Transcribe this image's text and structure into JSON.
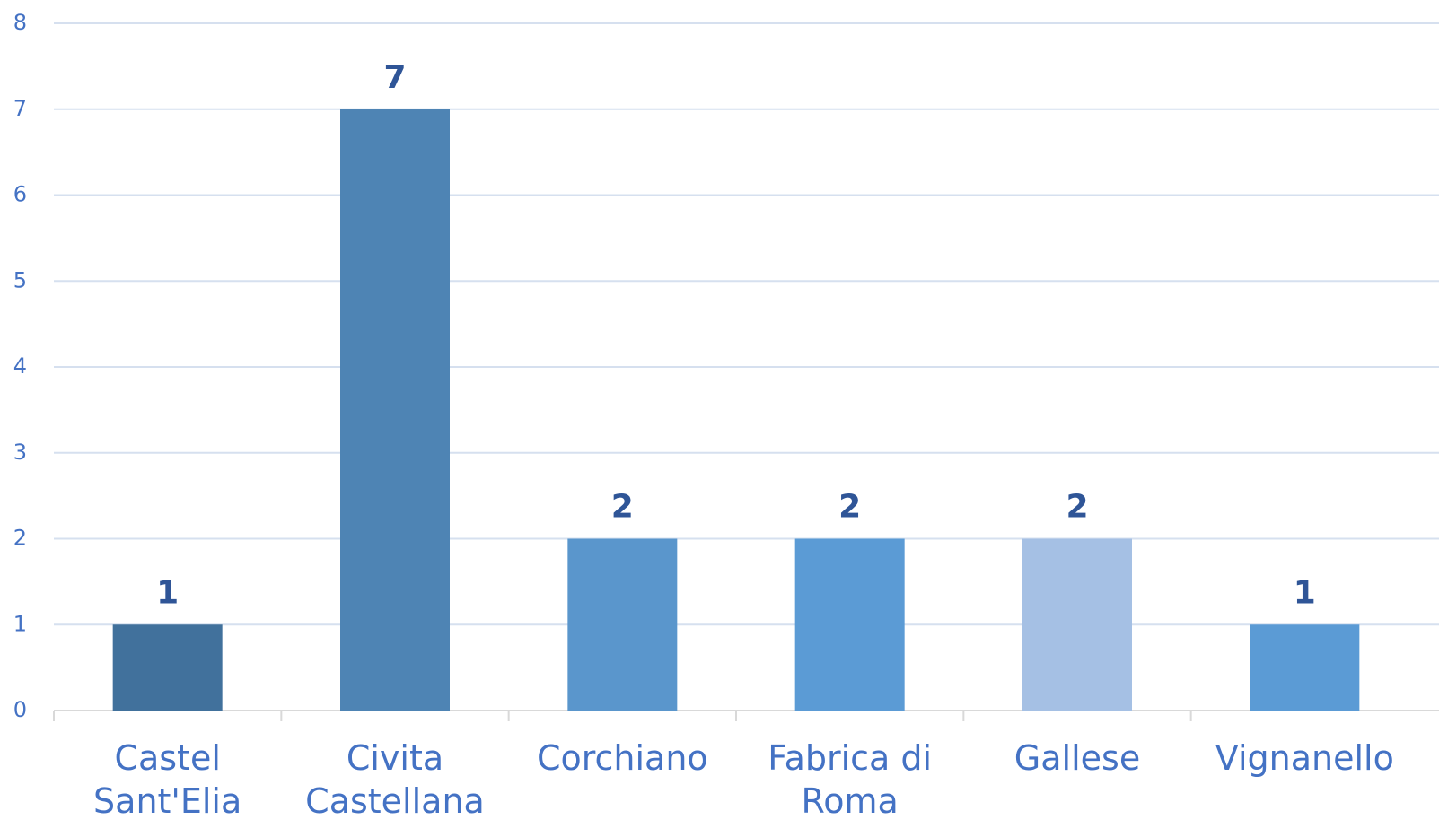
{
  "chart_data": {
    "type": "bar",
    "categories": [
      "Castel Sant'Elia",
      "Civita Castellana",
      "Corchiano",
      "Fabrica di Roma",
      "Gallese",
      "Vignanello"
    ],
    "values": [
      1,
      7,
      2,
      2,
      2,
      1
    ],
    "colors": [
      "#41719c",
      "#4e84b4",
      "#5a96cc",
      "#5b9bd5",
      "#a5c0e4",
      "#5b9bd5"
    ],
    "ylim": [
      0,
      8
    ],
    "yticks": [
      0,
      1,
      2,
      3,
      4,
      5,
      6,
      7,
      8
    ],
    "grid": true
  }
}
